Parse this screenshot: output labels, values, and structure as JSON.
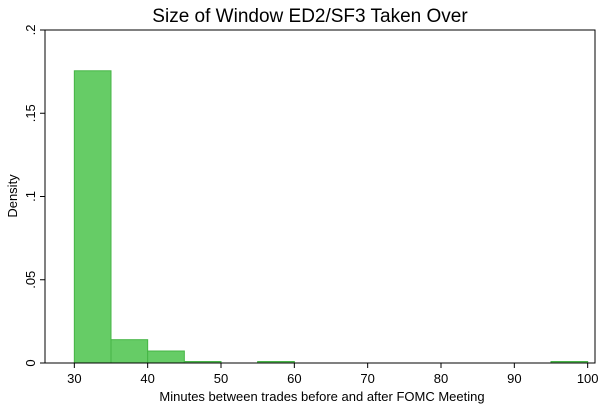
{
  "chart_data": {
    "type": "bar",
    "title": "Size of Window ED2/SF3 Taken Over",
    "xlabel": "Minutes between trades before and after FOMC Meeting",
    "ylabel": "Density",
    "xlim": [
      26,
      101
    ],
    "ylim": [
      0,
      0.2
    ],
    "xticks": [
      30,
      40,
      50,
      60,
      70,
      80,
      90,
      100
    ],
    "yticks": [
      0,
      0.05,
      0.1,
      0.15,
      0.2
    ],
    "ytick_labels": [
      "0",
      ".05",
      ".1",
      ".15",
      ".2"
    ],
    "bar_color": "#66cc66",
    "bar_edge_color": "#45b545",
    "grid": false,
    "bins": [
      {
        "x0": 30,
        "x1": 35,
        "density": 0.1755
      },
      {
        "x0": 35,
        "x1": 40,
        "density": 0.014
      },
      {
        "x0": 40,
        "x1": 45,
        "density": 0.0072
      },
      {
        "x0": 45,
        "x1": 50,
        "density": 0.0004
      },
      {
        "x0": 50,
        "x1": 55,
        "density": 0.0
      },
      {
        "x0": 55,
        "x1": 60,
        "density": 0.0004
      },
      {
        "x0": 60,
        "x1": 65,
        "density": 0.0
      },
      {
        "x0": 65,
        "x1": 70,
        "density": 0.0
      },
      {
        "x0": 70,
        "x1": 75,
        "density": 0.0
      },
      {
        "x0": 75,
        "x1": 80,
        "density": 0.0
      },
      {
        "x0": 80,
        "x1": 85,
        "density": 0.0
      },
      {
        "x0": 85,
        "x1": 90,
        "density": 0.0
      },
      {
        "x0": 90,
        "x1": 95,
        "density": 0.0
      },
      {
        "x0": 95,
        "x1": 100,
        "density": 0.0004
      }
    ]
  }
}
